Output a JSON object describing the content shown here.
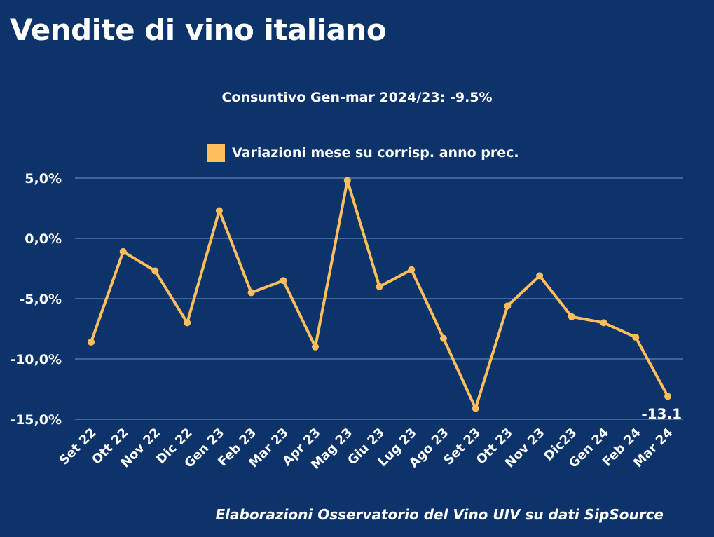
{
  "title": "Vendite di vino italiano",
  "source": "Elaborazioni Osservatorio del Vino UIV su dati SipSource",
  "chart_data": {
    "type": "line",
    "title": "Consuntivo Gen-mar 2024/23: -9.5%",
    "legend": {
      "placement": "top",
      "entries": [
        "Variazioni mese su corrisp. anno prec."
      ]
    },
    "series": [
      {
        "name": "Variazioni mese su corrisp. anno prec.",
        "color": "#ffbe5c",
        "values": [
          -8.6,
          -1.1,
          -2.7,
          -7.0,
          2.3,
          -4.5,
          -3.5,
          -9.0,
          4.8,
          -4.0,
          -2.6,
          -8.3,
          -14.1,
          -5.6,
          -3.1,
          -6.5,
          -7.0,
          -8.2,
          -13.1
        ]
      }
    ],
    "categories": [
      "Set 22",
      "Ott 22",
      "Nov 22",
      "Dic 22",
      "Gen 23",
      "Feb 23",
      "Mar 23",
      "Apr 23",
      "Mag 23",
      "Giu 23",
      "Lug 23",
      "Ago 23",
      "Set 23",
      "Ott 23",
      "Nov 23",
      "Dic23",
      "Gen 24",
      "Feb 24",
      "Mar 24"
    ],
    "yticks": [
      5,
      0,
      -5,
      -10,
      -15
    ],
    "ytick_labels": [
      "5,0%",
      "0,0%",
      "-5,0%",
      "-10,0%",
      "-15,0%"
    ],
    "ylim": [
      -15,
      5
    ],
    "grid": true,
    "data_labels": [
      {
        "index": 18,
        "text": "-13.1"
      }
    ],
    "background": "#0c346b"
  }
}
